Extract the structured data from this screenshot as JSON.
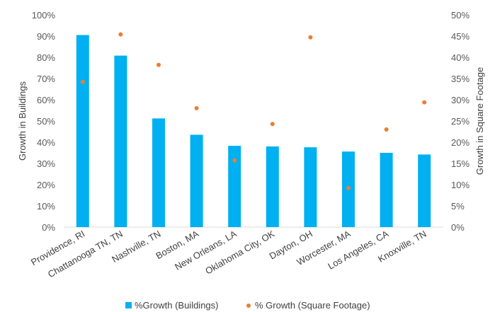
{
  "chart_data": {
    "type": "bar",
    "categories": [
      "Providence, RI",
      "Chattanooga TN, TN",
      "Nashville, TN",
      "Boston, MA",
      "New Orleans, LA",
      "Oklahoma City, OK",
      "Dayton, OH",
      "Worcester, MA",
      "Los Angeles, CA",
      "Knoxville, TN"
    ],
    "series": [
      {
        "name": "%Growth (Buildings)",
        "type": "bar",
        "axis": "left",
        "color": "#00B0F0",
        "values": [
          90.5,
          80.8,
          51.2,
          43.5,
          38.3,
          38.0,
          37.6,
          35.6,
          35.0,
          34.2
        ]
      },
      {
        "name": "% Growth (Square Footage)",
        "type": "scatter",
        "axis": "right",
        "color": "#ED7D31",
        "values": [
          34.2,
          45.4,
          38.2,
          28.0,
          15.7,
          24.3,
          44.7,
          9.2,
          23.0,
          29.4
        ]
      }
    ],
    "ylabel": "Growth in Buildings",
    "y2label": "Growth in Square Footage",
    "ylim": [
      0,
      100
    ],
    "y2lim": [
      0,
      50
    ],
    "yticks": [
      "0%",
      "10%",
      "20%",
      "30%",
      "40%",
      "50%",
      "60%",
      "70%",
      "80%",
      "90%",
      "100%"
    ],
    "y2ticks": [
      "0%",
      "5%",
      "10%",
      "15%",
      "20%",
      "25%",
      "30%",
      "35%",
      "40%",
      "45%",
      "50%"
    ],
    "grid": false,
    "legend_position": "bottom"
  }
}
